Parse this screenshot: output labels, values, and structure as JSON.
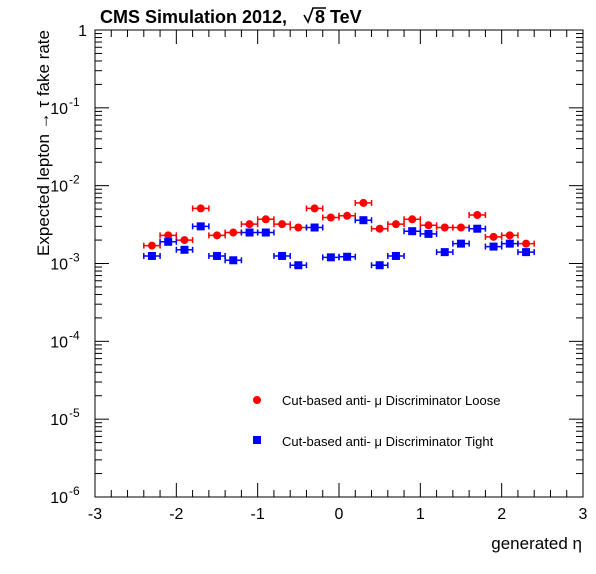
{
  "chart_data": {
    "type": "scatter",
    "title": "CMS Simulation 2012,",
    "title_energy": "8 TeV",
    "xlabel": "generated η",
    "ylabel": "Expected lepton → τ fake rate",
    "xlim": [
      -3,
      3
    ],
    "ylim": [
      1e-06,
      1
    ],
    "y_scale": "log",
    "x_tick_labels": [
      "-3",
      "-2",
      "-1",
      "0",
      "1",
      "2",
      "3"
    ],
    "y_tick_labels": [
      {
        "value": 1e-06,
        "base": "10",
        "exp": "-6"
      },
      {
        "value": 1e-05,
        "base": "10",
        "exp": "-5"
      },
      {
        "value": 0.0001,
        "base": "10",
        "exp": "-4"
      },
      {
        "value": 0.001,
        "base": "10",
        "exp": "-3"
      },
      {
        "value": 0.01,
        "base": "10",
        "exp": "-2"
      },
      {
        "value": 0.1,
        "base": "10",
        "exp": "-1"
      },
      {
        "value": 1,
        "base": "1",
        "exp": ""
      }
    ],
    "x_bin_half_width": 0.1,
    "legend_position": "bottom-right",
    "series": [
      {
        "name": "Cut-based anti- μ Discriminator Loose",
        "marker": "circle",
        "color": "#ff0000",
        "x": [
          -2.3,
          -2.1,
          -1.9,
          -1.7,
          -1.5,
          -1.3,
          -1.1,
          -0.9,
          -0.7,
          -0.5,
          -0.3,
          -0.1,
          0.1,
          0.3,
          0.5,
          0.7,
          0.9,
          1.1,
          1.3,
          1.5,
          1.7,
          1.9,
          2.1,
          2.3
        ],
        "y": [
          0.0017,
          0.0023,
          0.002,
          0.0051,
          0.0023,
          0.0025,
          0.0032,
          0.0037,
          0.0032,
          0.0029,
          0.0051,
          0.0039,
          0.0041,
          0.006,
          0.0028,
          0.0032,
          0.0037,
          0.0031,
          0.0029,
          0.0029,
          0.0042,
          0.0022,
          0.0023,
          0.0018
        ]
      },
      {
        "name": "Cut-based anti- μ Discriminator Tight",
        "marker": "square",
        "color": "#0000ff",
        "x": [
          -2.3,
          -2.1,
          -1.9,
          -1.7,
          -1.5,
          -1.3,
          -1.1,
          -0.9,
          -0.7,
          -0.5,
          -0.3,
          -0.1,
          0.1,
          0.3,
          0.5,
          0.7,
          0.9,
          1.1,
          1.3,
          1.5,
          1.7,
          1.9,
          2.1,
          2.3
        ],
        "y": [
          0.00125,
          0.0019,
          0.0015,
          0.003,
          0.00125,
          0.0011,
          0.0025,
          0.0025,
          0.00125,
          0.00095,
          0.0029,
          0.0012,
          0.00122,
          0.0036,
          0.00095,
          0.00125,
          0.0026,
          0.0024,
          0.0014,
          0.0018,
          0.0028,
          0.00165,
          0.0018,
          0.0014
        ]
      }
    ]
  }
}
